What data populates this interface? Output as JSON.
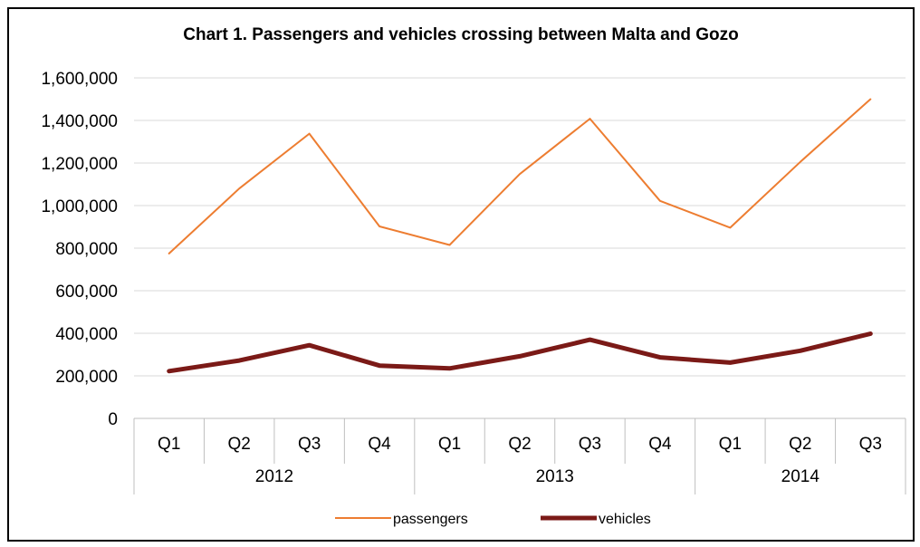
{
  "chart_data": {
    "type": "line",
    "title": "Chart 1. Passengers and vehicles crossing between Malta and Gozo",
    "xlabel": "",
    "ylabel": "",
    "categories": [
      "Q1",
      "Q2",
      "Q3",
      "Q4",
      "Q1",
      "Q2",
      "Q3",
      "Q4",
      "Q1",
      "Q2",
      "Q3"
    ],
    "category_groups": [
      {
        "label": "2012",
        "count": 4
      },
      {
        "label": "2013",
        "count": 4
      },
      {
        "label": "2014",
        "count": 3
      }
    ],
    "y_ticks": [
      "0",
      "200,000",
      "400,000",
      "600,000",
      "800,000",
      "1,000,000",
      "1,200,000",
      "1,400,000",
      "1,600,000"
    ],
    "ylim": [
      0,
      1600000
    ],
    "grid": true,
    "legend_position": "bottom",
    "series": [
      {
        "name": "passengers",
        "color": "#ed7d31",
        "values": [
          775000,
          1080000,
          1338000,
          902000,
          815000,
          1148000,
          1408000,
          1022000,
          896000,
          1205000,
          1500000
        ]
      },
      {
        "name": "vehicles",
        "color": "#7b1a17",
        "values": [
          222000,
          272000,
          344000,
          248000,
          235000,
          292000,
          370000,
          287000,
          262000,
          318000,
          398000
        ]
      }
    ]
  }
}
